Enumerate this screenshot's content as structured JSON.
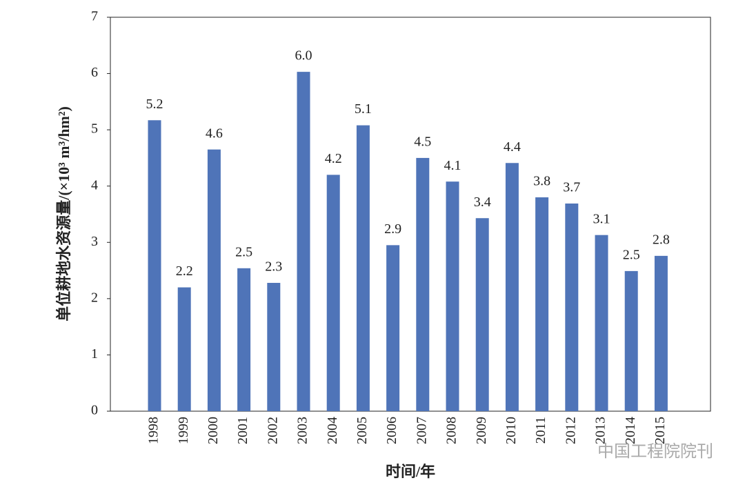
{
  "chart_data": {
    "type": "bar",
    "x_label": "时间/年",
    "y_label": "单位耕地水资源量/(×10³ m³/hm²)",
    "watermark": "中国工程院院刊",
    "categories": [
      "1998",
      "1999",
      "2000",
      "2001",
      "2002",
      "2003",
      "2004",
      "2005",
      "2006",
      "2007",
      "2008",
      "2009",
      "2010",
      "2011",
      "2012",
      "2013",
      "2014",
      "2015"
    ],
    "values": [
      5.17,
      2.2,
      4.65,
      2.54,
      2.28,
      6.03,
      4.2,
      5.08,
      2.95,
      4.5,
      4.08,
      3.43,
      4.41,
      3.8,
      3.69,
      3.13,
      2.49,
      2.76
    ],
    "value_labels": [
      "5.2",
      "2.2",
      "4.6",
      "2.5",
      "2.3",
      "6.0",
      "4.2",
      "5.1",
      "2.9",
      "4.5",
      "4.1",
      "3.4",
      "4.4",
      "3.8",
      "3.7",
      "3.1",
      "2.5",
      "2.8"
    ],
    "color": "#4f74b8",
    "ylim": [
      0,
      7
    ],
    "yticks": [
      0,
      1,
      2,
      3,
      4,
      5,
      6,
      7
    ],
    "grid": false
  }
}
